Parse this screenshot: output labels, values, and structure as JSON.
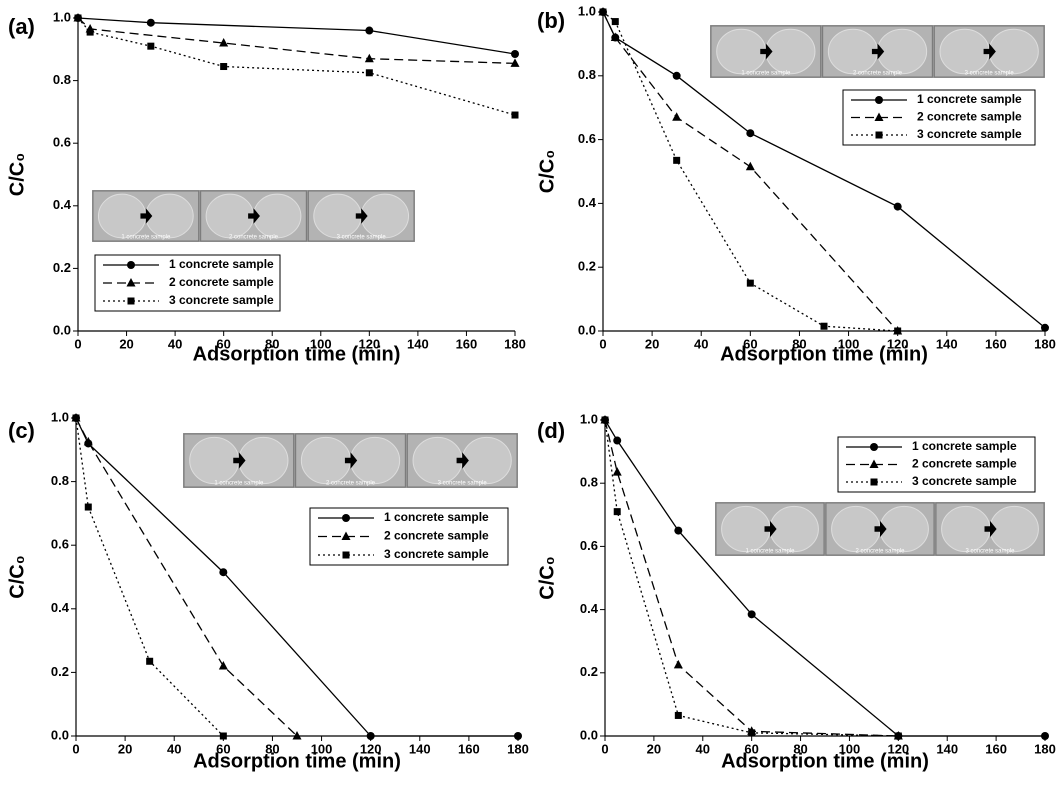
{
  "chart_data": [
    {
      "type": "line",
      "label": "(a)",
      "xlabel": "Adsorption time (min)",
      "ylabel": "C/C₀",
      "xlim": [
        0,
        180
      ],
      "ylim": [
        0,
        1
      ],
      "xticks": [
        0,
        20,
        40,
        60,
        80,
        100,
        120,
        140,
        160,
        180
      ],
      "yticks": [
        {
          "value": 0,
          "label": "0.0"
        },
        {
          "value": 0.2,
          "label": "0.2"
        },
        {
          "value": 0.4,
          "label": "0.4"
        },
        {
          "value": 0.6,
          "label": "0.6"
        },
        {
          "value": 0.8,
          "label": "0.8"
        },
        {
          "value": 1,
          "label": "1.0"
        }
      ],
      "inset_labels": [
        "1 concrete sample",
        "2 concrete sample",
        "3 concrete sample"
      ],
      "series": [
        {
          "name": "1 concrete sample",
          "color": "#000000",
          "linestyle": "solid",
          "marker": "circle",
          "x": [
            0,
            30,
            120,
            180
          ],
          "values": [
            1.0,
            0.985,
            0.96,
            0.885
          ]
        },
        {
          "name": "2 concrete sample",
          "color": "#000000",
          "linestyle": "dashed",
          "marker": "triangle",
          "x": [
            0,
            5,
            60,
            120,
            180
          ],
          "values": [
            1.0,
            0.965,
            0.92,
            0.87,
            0.855
          ]
        },
        {
          "name": "3 concrete sample",
          "color": "#000000",
          "linestyle": "dotted",
          "marker": "square",
          "x": [
            0,
            5,
            30,
            60,
            120,
            180
          ],
          "values": [
            1.0,
            0.955,
            0.91,
            0.845,
            0.825,
            0.69
          ]
        }
      ]
    },
    {
      "type": "line",
      "label": "(b)",
      "xlabel": "Adsorption time (min)",
      "ylabel": "C/C₀",
      "xlim": [
        0,
        180
      ],
      "ylim": [
        0,
        1
      ],
      "xticks": [
        0,
        20,
        40,
        60,
        80,
        100,
        120,
        140,
        160,
        180
      ],
      "yticks": [
        {
          "value": 0,
          "label": "0.0"
        },
        {
          "value": 0.2,
          "label": "0.2"
        },
        {
          "value": 0.4,
          "label": "0.4"
        },
        {
          "value": 0.6,
          "label": "0.6"
        },
        {
          "value": 0.8,
          "label": "0.8"
        },
        {
          "value": 1,
          "label": "1.0"
        }
      ],
      "inset_labels": [
        "1 concrete sample",
        "2 concrete sample",
        "3 concrete sample"
      ],
      "series": [
        {
          "name": "1 concrete sample",
          "color": "#000000",
          "linestyle": "solid",
          "marker": "circle",
          "x": [
            0,
            5,
            30,
            60,
            120,
            180
          ],
          "values": [
            1.0,
            0.92,
            0.8,
            0.62,
            0.39,
            0.01
          ]
        },
        {
          "name": "2 concrete sample",
          "color": "#000000",
          "linestyle": "dashed",
          "marker": "triangle",
          "x": [
            0,
            5,
            30,
            60,
            120
          ],
          "values": [
            1.0,
            0.92,
            0.67,
            0.515,
            0.0
          ]
        },
        {
          "name": "3 concrete sample",
          "color": "#000000",
          "linestyle": "dotted",
          "marker": "square",
          "x": [
            0,
            5,
            30,
            60,
            90,
            120
          ],
          "values": [
            1.0,
            0.97,
            0.535,
            0.15,
            0.015,
            0.0
          ]
        }
      ]
    },
    {
      "type": "line",
      "label": "(c)",
      "xlabel": "Adsorption time (min)",
      "ylabel": "C/C₀",
      "xlim": [
        0,
        180
      ],
      "ylim": [
        0,
        1
      ],
      "xticks": [
        0,
        20,
        40,
        60,
        80,
        100,
        120,
        140,
        160,
        180
      ],
      "yticks": [
        {
          "value": 0,
          "label": "0.0"
        },
        {
          "value": 0.2,
          "label": "0.2"
        },
        {
          "value": 0.4,
          "label": "0.4"
        },
        {
          "value": 0.6,
          "label": "0.6"
        },
        {
          "value": 0.8,
          "label": "0.8"
        },
        {
          "value": 1,
          "label": "1.0"
        }
      ],
      "inset_labels": [
        "1 concrete sample",
        "2 concrete sample",
        "3 concrete sample"
      ],
      "series": [
        {
          "name": "1 concrete sample",
          "color": "#000000",
          "linestyle": "solid",
          "marker": "circle",
          "x": [
            0,
            5,
            60,
            120,
            180
          ],
          "values": [
            1.0,
            0.92,
            0.515,
            0.0,
            0.0
          ]
        },
        {
          "name": "2 concrete sample",
          "color": "#000000",
          "linestyle": "dashed",
          "marker": "triangle",
          "x": [
            0,
            5,
            60,
            90
          ],
          "values": [
            1.0,
            0.925,
            0.22,
            0.0
          ]
        },
        {
          "name": "3 concrete sample",
          "color": "#000000",
          "linestyle": "dotted",
          "marker": "square",
          "x": [
            0,
            5,
            30,
            60
          ],
          "values": [
            1.0,
            0.72,
            0.235,
            0.0
          ]
        }
      ]
    },
    {
      "type": "line",
      "label": "(d)",
      "xlabel": "Adsorption time (min)",
      "ylabel": "C/C₀",
      "xlim": [
        0,
        180
      ],
      "ylim": [
        0,
        1
      ],
      "xticks": [
        0,
        20,
        40,
        60,
        80,
        100,
        120,
        140,
        160,
        180
      ],
      "yticks": [
        {
          "value": 0,
          "label": "0.0"
        },
        {
          "value": 0.2,
          "label": "0.2"
        },
        {
          "value": 0.4,
          "label": "0.4"
        },
        {
          "value": 0.6,
          "label": "0.6"
        },
        {
          "value": 0.8,
          "label": "0.8"
        },
        {
          "value": 1,
          "label": "1.0"
        }
      ],
      "inset_labels": [
        "1 concrete sample",
        "2 concrete sample",
        "3 concrete sample"
      ],
      "series": [
        {
          "name": "1 concrete sample",
          "color": "#000000",
          "linestyle": "solid",
          "marker": "circle",
          "x": [
            0,
            5,
            30,
            60,
            120,
            180
          ],
          "values": [
            1.0,
            0.935,
            0.65,
            0.385,
            0.0,
            0.0
          ]
        },
        {
          "name": "2 concrete sample",
          "color": "#000000",
          "linestyle": "dashed",
          "marker": "triangle",
          "x": [
            0,
            5,
            30,
            60,
            120
          ],
          "values": [
            1.0,
            0.835,
            0.225,
            0.015,
            0.0
          ]
        },
        {
          "name": "3 concrete sample",
          "color": "#000000",
          "linestyle": "dotted",
          "marker": "square",
          "x": [
            0,
            5,
            30,
            60,
            120
          ],
          "values": [
            1.0,
            0.71,
            0.065,
            0.01,
            0.0
          ]
        }
      ]
    }
  ]
}
